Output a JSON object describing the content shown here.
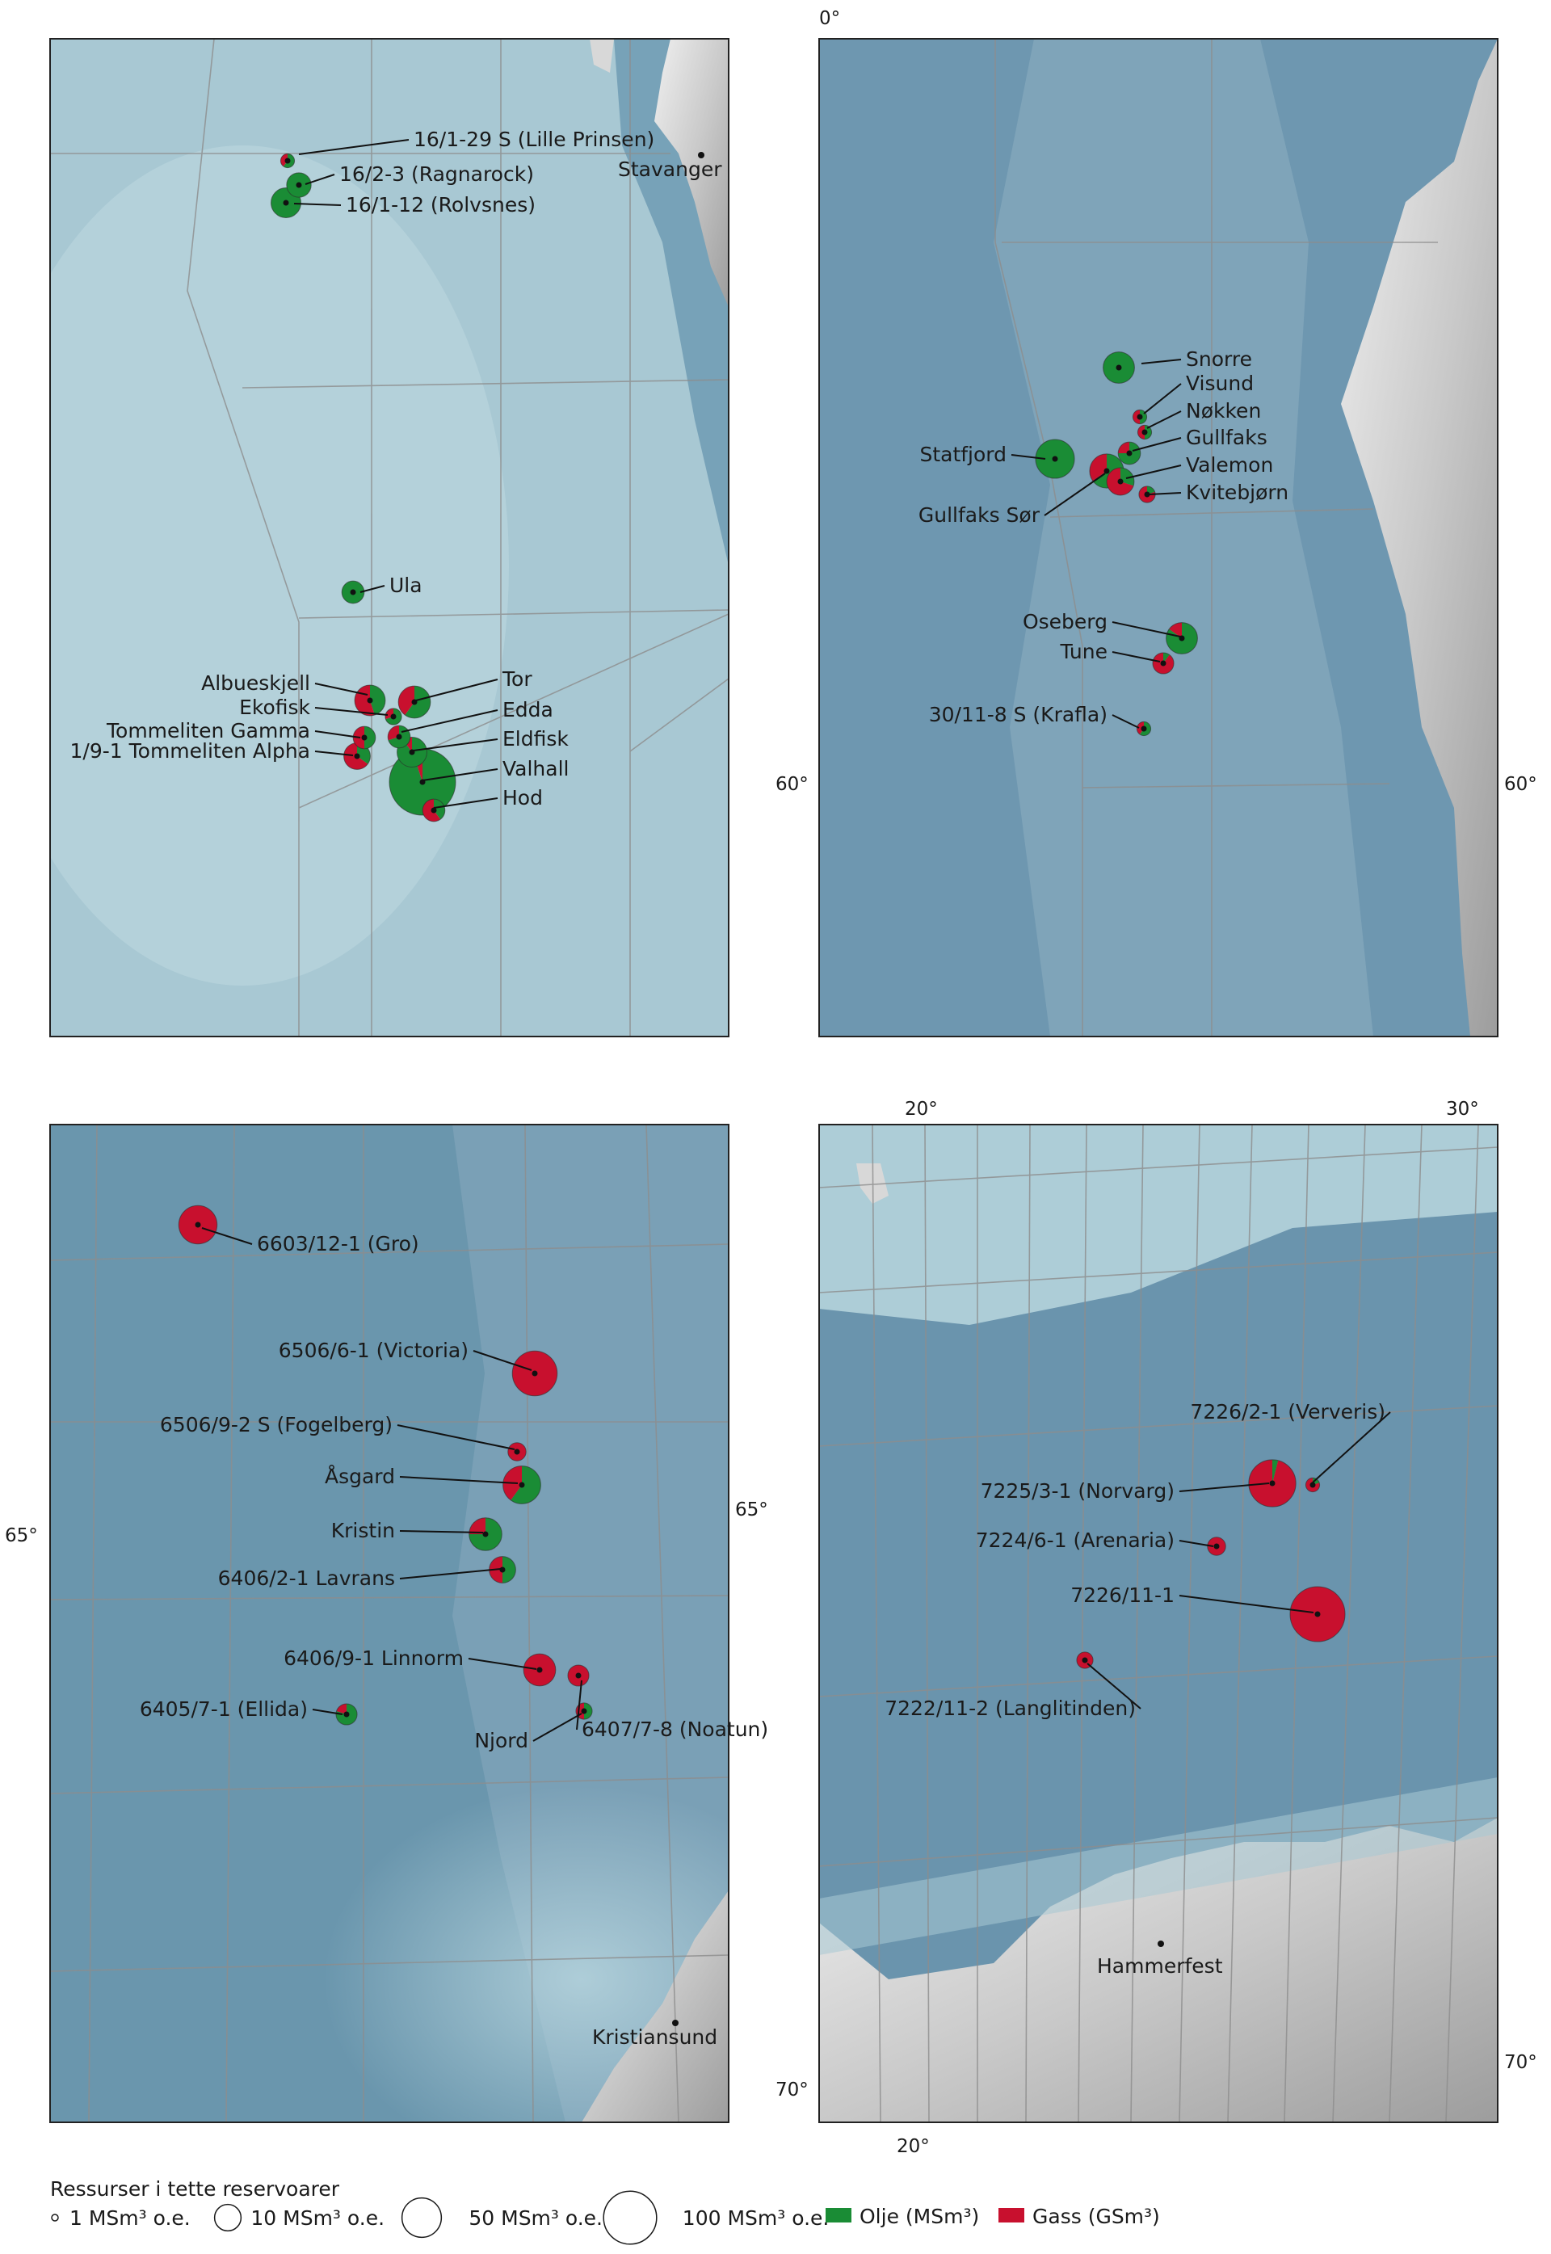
{
  "colors": {
    "oil": "#1a8c35",
    "gas": "#c8102e",
    "sea_deep": "#5d8aa3",
    "sea_shallow": "#a9cbd6",
    "land": "#d7d7d7"
  },
  "panels": [
    {
      "id": "southern-north-sea",
      "towns": [
        {
          "name": "Stavanger"
        }
      ],
      "degree_labels": [],
      "fields": [
        {
          "name": "16/1-29 S (Lille Prinsen)",
          "size": 1,
          "oil": 0.6
        },
        {
          "name": "16/2-3 (Ragnarock)",
          "size": 8,
          "oil": 1.0
        },
        {
          "name": "16/1-12 (Rolvsnes)",
          "size": 14,
          "oil": 1.0
        },
        {
          "name": "Ula",
          "size": 6,
          "oil": 1.0
        },
        {
          "name": "Albueskjell",
          "size": 15,
          "oil": 0.45
        },
        {
          "name": "Tor",
          "size": 17,
          "oil": 0.6
        },
        {
          "name": "Ekofisk",
          "size": 2,
          "oil": 0.7
        },
        {
          "name": "Edda",
          "size": 6,
          "oil": 0.7
        },
        {
          "name": "Tommeliten Gamma",
          "size": 6,
          "oil": 0.5
        },
        {
          "name": "Eldfisk",
          "size": 14,
          "oil": 0.9
        },
        {
          "name": "1/9-1 Tommeliten Alpha",
          "size": 10,
          "oil": 0.35
        },
        {
          "name": "Valhall",
          "size": 100,
          "oil": 0.95
        },
        {
          "name": "Hod",
          "size": 6,
          "oil": 0.4
        }
      ]
    },
    {
      "id": "northern-north-sea",
      "towns": [],
      "degree_labels": [
        "0°",
        "60°",
        "60°"
      ],
      "fields": [
        {
          "name": "Snorre",
          "size": 16,
          "oil": 1.0
        },
        {
          "name": "Visund",
          "size": 1,
          "oil": 0.5
        },
        {
          "name": "Nøkken",
          "size": 1,
          "oil": 0.5
        },
        {
          "name": "Gullfaks",
          "size": 6,
          "oil": 0.75
        },
        {
          "name": "Statfjord",
          "size": 28,
          "oil": 1.0
        },
        {
          "name": "Valemon",
          "size": 11,
          "oil": 0.3
        },
        {
          "name": "Gullfaks Sør",
          "size": 20,
          "oil": 0.65
        },
        {
          "name": "Kvitebjørn",
          "size": 2,
          "oil": 0.2
        },
        {
          "name": "Oseberg",
          "size": 16,
          "oil": 0.85
        },
        {
          "name": "Tune",
          "size": 5,
          "oil": 0.1
        },
        {
          "name": "30/11-8 S (Krafla)",
          "size": 1,
          "oil": 0.6
        }
      ]
    },
    {
      "id": "norwegian-sea",
      "towns": [
        {
          "name": "Kristiansund"
        }
      ],
      "degree_labels": [
        "65°",
        "65°"
      ],
      "fields": [
        {
          "name": "6603/12-1 (Gro)",
          "size": 27,
          "oil": 0.0
        },
        {
          "name": "6506/6-1 (Victoria)",
          "size": 40,
          "oil": 0.0
        },
        {
          "name": "6506/9-2 S (Fogelberg)",
          "size": 3,
          "oil": 0.0
        },
        {
          "name": "Åsgard",
          "size": 26,
          "oil": 0.6
        },
        {
          "name": "Kristin",
          "size": 18,
          "oil": 0.75
        },
        {
          "name": "6406/2-1 Lavrans",
          "size": 10,
          "oil": 0.5
        },
        {
          "name": "6406/9-1 Linnorm",
          "size": 17,
          "oil": 0.0
        },
        {
          "name": "6407/7-8 (Noatun)",
          "size": 5,
          "oil": 0.0
        },
        {
          "name": "6405/7-1 (Ellida)",
          "size": 5,
          "oil": 0.8
        },
        {
          "name": "Njord",
          "size": 2,
          "oil": 0.5
        }
      ]
    },
    {
      "id": "barents-sea",
      "towns": [
        {
          "name": "Hammerfest"
        }
      ],
      "degree_labels": [
        "20°",
        "30°",
        "20°",
        "70°",
        "70°"
      ],
      "fields": [
        {
          "name": "7226/2-1 (Ververis)",
          "size": 1,
          "oil": 0.2
        },
        {
          "name": "7225/3-1 (Norvarg)",
          "size": 45,
          "oil": 0.04
        },
        {
          "name": "7224/6-1 (Arenaria)",
          "size": 3,
          "oil": 0.0
        },
        {
          "name": "7226/11-1",
          "size": 65,
          "oil": 0.0
        },
        {
          "name": "7222/11-2 (Langlitinden)",
          "size": 2,
          "oil": 0.0
        }
      ]
    }
  ],
  "legend": {
    "title": "Ressurser i tette reservoarer",
    "sizes": [
      {
        "label": "1 MSm³ o.e.",
        "size": 1
      },
      {
        "label": "10 MSm³ o.e.",
        "size": 10
      },
      {
        "label": "50 MSm³ o.e.",
        "size": 50
      },
      {
        "label": "100 MSm³ o.e.",
        "size": 100
      }
    ],
    "oil_label": "Olje (MSm³)",
    "gas_label": "Gass (GSm³)"
  }
}
